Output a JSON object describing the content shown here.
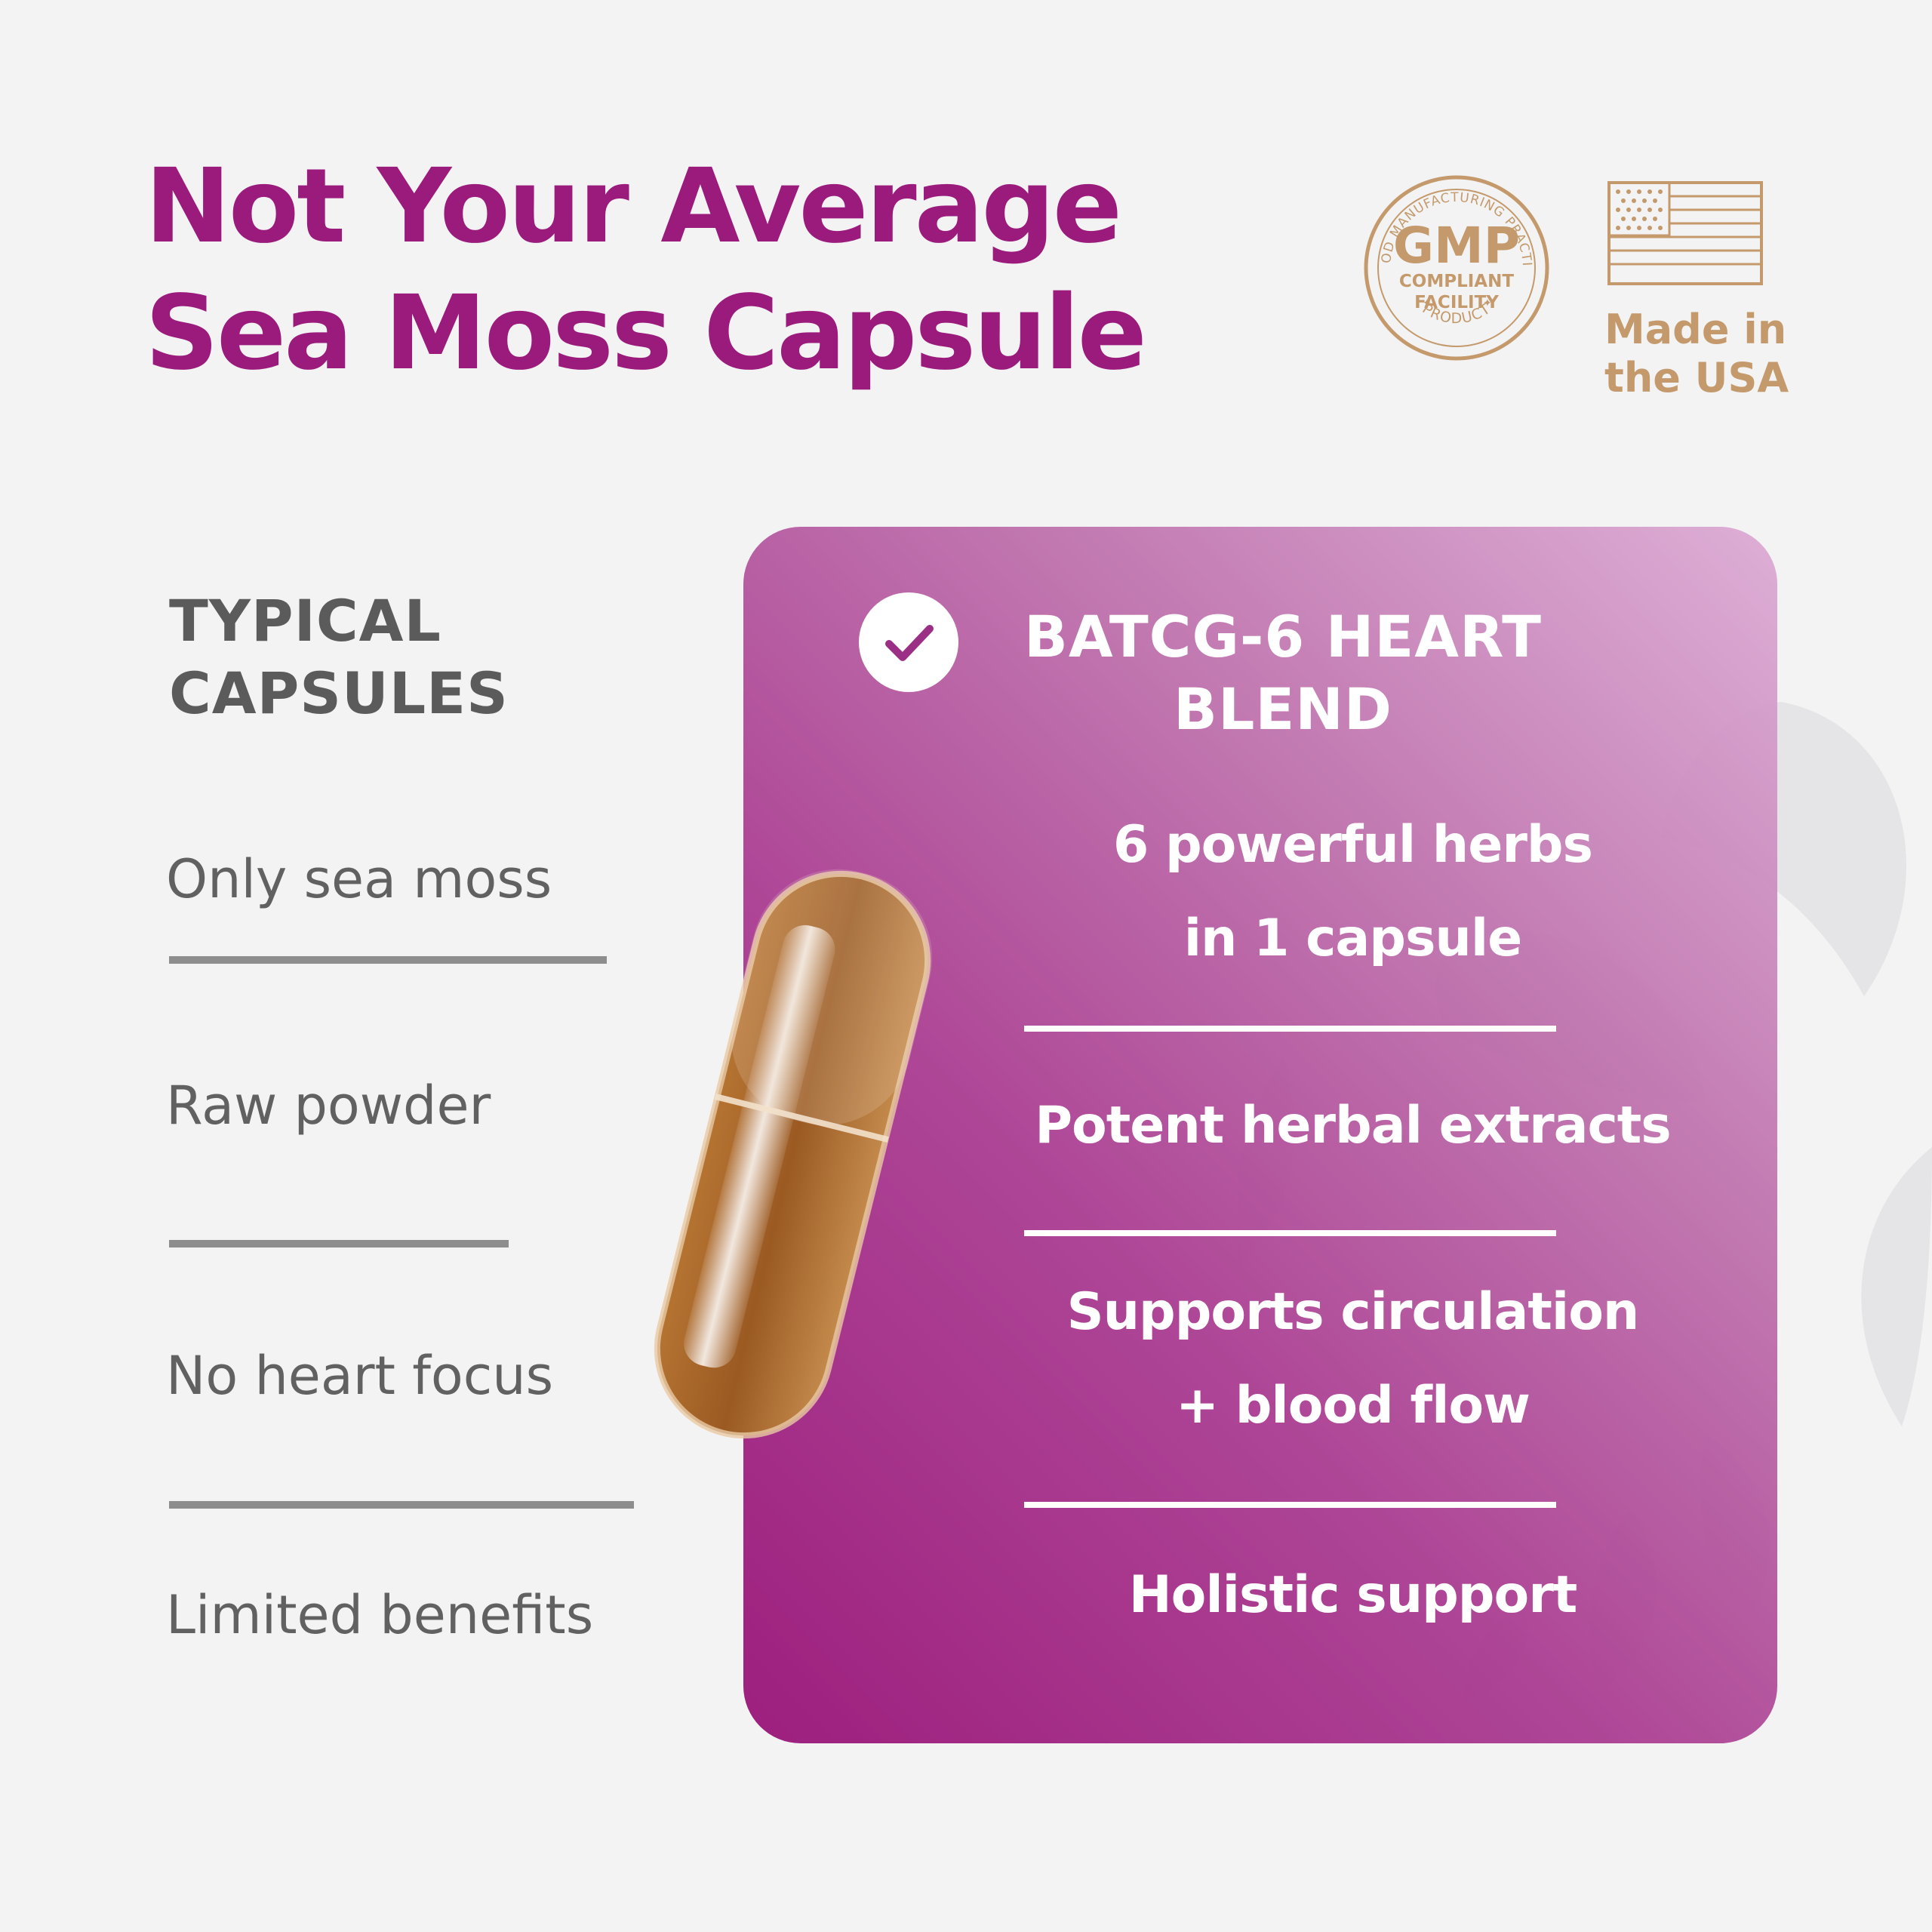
{
  "headline": {
    "line1": "Not Your Average",
    "line2": "Sea Moss Capsule"
  },
  "badges": {
    "gmp": {
      "icon": "gmp-seal-icon",
      "main": "GMP",
      "line1": "COMPLIANT",
      "line2": "FACILITY",
      "arc_top": "GOOD MANUFACTURING PRACTICE",
      "arc_bottom": "PRODUCT"
    },
    "usa": {
      "icon": "us-flag-icon",
      "line1": "Made in",
      "line2": "the USA"
    }
  },
  "typical": {
    "title_line1": "TYPICAL",
    "title_line2": "CAPSULES",
    "items": [
      "Only sea moss",
      "Raw powder",
      "No heart focus",
      "Limited benefits"
    ]
  },
  "blend": {
    "icon": "checkmark-icon",
    "title_line1": "BATCG-6 HEART",
    "title_line2": "BLEND",
    "features": [
      {
        "line1": "6 powerful herbs",
        "line2": "in 1 capsule"
      },
      {
        "line1": "Potent herbal extracts"
      },
      {
        "line1": "Supports circulation",
        "line2": "+ blood flow"
      },
      {
        "line1": "Holistic support"
      }
    ]
  },
  "colors": {
    "brand_purple": "#9b1b7c",
    "gold": "#c49a6c",
    "text_gray": "#616161",
    "background": "#f3f3f3"
  }
}
